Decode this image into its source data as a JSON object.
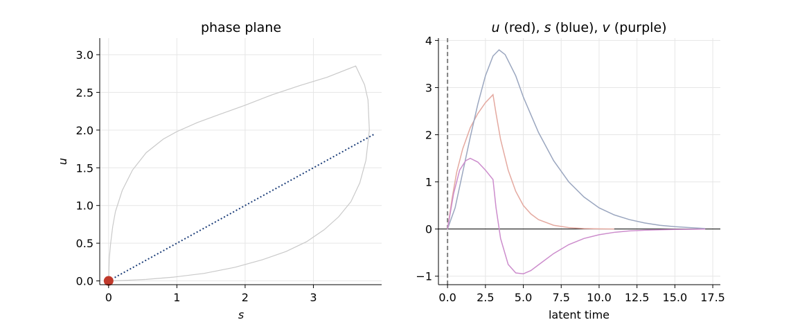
{
  "chart_data": [
    {
      "type": "line",
      "title": "phase plane",
      "xlabel": "s",
      "ylabel": "u",
      "xlim": [
        -0.13,
        4.0
      ],
      "ylim": [
        -0.05,
        3.22
      ],
      "xticks": [
        0,
        1,
        2,
        3
      ],
      "xtick_labels": [
        "0",
        "1",
        "2",
        "3"
      ],
      "yticks": [
        0,
        0.5,
        1.0,
        1.5,
        2.0,
        2.5,
        3.0
      ],
      "ytick_labels": [
        "0.0",
        "0.5",
        "1.0",
        "1.5",
        "2.0",
        "2.5",
        "3.0"
      ],
      "grid": true,
      "colors": {
        "trajectory": "#c9c9c9",
        "steady_state": "#1a3c78",
        "marker": "#c0392b"
      },
      "series": [
        {
          "kind": "trajectory",
          "s": [
            0,
            0.01,
            0.03,
            0.06,
            0.1,
            0.2,
            0.35,
            0.55,
            0.8,
            1.0,
            1.3,
            1.6,
            2.0,
            2.4,
            2.8,
            3.2,
            3.62,
            3.75,
            3.8,
            3.82,
            3.77,
            3.68,
            3.55,
            3.37,
            3.16,
            2.9,
            2.6,
            2.25,
            1.85,
            1.4,
            0.95,
            0.55,
            0.25,
            0.08,
            0.02,
            0
          ],
          "u": [
            0,
            0.3,
            0.5,
            0.72,
            0.92,
            1.2,
            1.47,
            1.7,
            1.88,
            1.98,
            2.1,
            2.2,
            2.33,
            2.47,
            2.59,
            2.7,
            2.85,
            2.6,
            2.4,
            2.0,
            1.6,
            1.3,
            1.05,
            0.85,
            0.68,
            0.52,
            0.39,
            0.28,
            0.18,
            0.1,
            0.05,
            0.02,
            0.008,
            0.002,
            0.001,
            0
          ]
        },
        {
          "kind": "steady-state line",
          "s": [
            0,
            3.9
          ],
          "u": [
            0,
            1.95
          ]
        },
        {
          "kind": "initial point",
          "s": [
            0
          ],
          "u": [
            0
          ]
        }
      ]
    },
    {
      "type": "line",
      "title_parts": [
        {
          "text": "u",
          "italic": true
        },
        {
          "text": " (red), ",
          "italic": false
        },
        {
          "text": "s",
          "italic": true
        },
        {
          "text": " (blue), ",
          "italic": false
        },
        {
          "text": "v",
          "italic": true
        },
        {
          "text": " (purple)",
          "italic": false
        }
      ],
      "xlabel": "latent time",
      "ylabel": "",
      "xlim": [
        -0.6,
        18.0
      ],
      "ylim": [
        -1.18,
        4.05
      ],
      "xticks": [
        0,
        2.5,
        5,
        7.5,
        10,
        12.5,
        15,
        17.5
      ],
      "xtick_labels": [
        "0.0",
        "2.5",
        "5.0",
        "7.5",
        "10.0",
        "12.5",
        "15.0",
        "17.5"
      ],
      "yticks": [
        -1,
        0,
        1,
        2,
        3,
        4
      ],
      "ytick_labels": [
        "−1",
        "0",
        "1",
        "2",
        "3",
        "4"
      ],
      "grid": true,
      "vline_x": 0,
      "hline_y": 0,
      "colors": {
        "u": "#e4a9a0",
        "s": "#9aa6bf",
        "v": "#cc8ccc",
        "vline": "#808080",
        "hline": "#000000"
      },
      "series": [
        {
          "color_key": "u",
          "x": [
            0,
            0.3,
            0.6,
            1.0,
            1.5,
            2.0,
            2.5,
            3.0,
            3.2,
            3.5,
            4.0,
            4.5,
            5.0,
            5.5,
            6.0,
            7.0,
            8.0,
            9.0,
            10.0,
            11.0
          ],
          "y": [
            0,
            0.65,
            1.2,
            1.7,
            2.15,
            2.45,
            2.68,
            2.85,
            2.45,
            1.9,
            1.25,
            0.8,
            0.5,
            0.32,
            0.2,
            0.08,
            0.03,
            0.01,
            0.004,
            0
          ]
        },
        {
          "color_key": "s",
          "x": [
            0,
            0.5,
            1.0,
            1.5,
            2.0,
            2.5,
            3.0,
            3.4,
            3.8,
            4.5,
            5.0,
            6.0,
            7.0,
            8.0,
            9.0,
            10.0,
            11.0,
            12.0,
            13.0,
            14.0,
            15.0,
            16.0,
            17.0
          ],
          "y": [
            0,
            0.45,
            1.2,
            1.95,
            2.65,
            3.25,
            3.67,
            3.8,
            3.7,
            3.25,
            2.8,
            2.05,
            1.45,
            1.0,
            0.68,
            0.45,
            0.3,
            0.2,
            0.13,
            0.08,
            0.05,
            0.03,
            0.01
          ]
        },
        {
          "color_key": "v",
          "x": [
            0,
            0.4,
            0.8,
            1.2,
            1.5,
            2.0,
            2.5,
            3.0,
            3.2,
            3.5,
            4.0,
            4.5,
            5.0,
            5.5,
            6.0,
            7.0,
            8.0,
            9.0,
            10.0,
            11.0,
            12.0,
            13.0,
            14.0,
            15.0,
            16.0,
            17.0
          ],
          "y": [
            0,
            0.75,
            1.25,
            1.45,
            1.5,
            1.42,
            1.25,
            1.05,
            0.45,
            -0.2,
            -0.75,
            -0.93,
            -0.95,
            -0.88,
            -0.76,
            -0.52,
            -0.33,
            -0.2,
            -0.12,
            -0.07,
            -0.04,
            -0.025,
            -0.015,
            -0.008,
            -0.004,
            0
          ]
        }
      ]
    }
  ]
}
